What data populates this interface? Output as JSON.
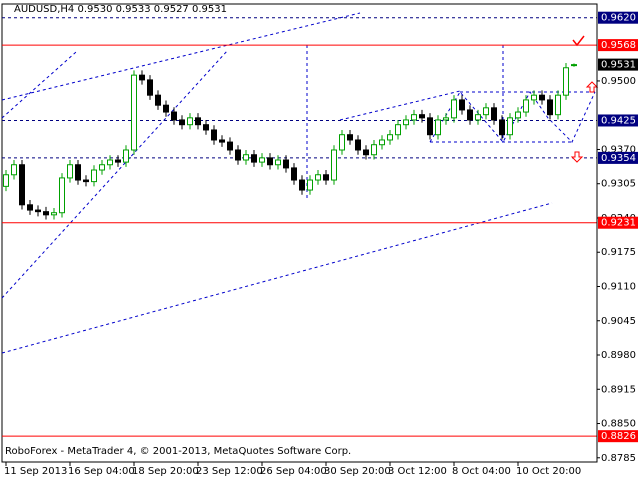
{
  "chart_data": {
    "type": "candlestick",
    "title": "AUDUSD,H4  0.9530 0.9533 0.9527 0.9531",
    "footer": "RoboForex - MetaTrader 4, © 2001-2013, MetaQuotes Software Corp.",
    "up_color": "#00a000",
    "down_color": "#000000",
    "categories": [
      "11 Sep 2013",
      null,
      null,
      null,
      null,
      null,
      null,
      null,
      "16 Sep 04:00",
      null,
      null,
      null,
      null,
      null,
      null,
      null,
      "18 Sep 20:00",
      null,
      null,
      null,
      null,
      null,
      null,
      null,
      "23 Sep 12:00",
      null,
      null,
      null,
      null,
      null,
      null,
      null,
      "26 Sep 04:00",
      null,
      null,
      null,
      null,
      null,
      null,
      null,
      "30 Sep 20:00",
      null,
      null,
      null,
      null,
      null,
      null,
      null,
      "3 Oct 12:00",
      null,
      null,
      null,
      null,
      null,
      null,
      null,
      "8 Oct 04:00",
      null,
      null,
      null,
      null,
      null,
      null,
      null,
      "10 Oct 20:00",
      null,
      null,
      null,
      null,
      null,
      null,
      null
    ],
    "open": [
      0.93,
      0.9322,
      0.9341,
      0.9265,
      0.9255,
      0.9252,
      0.9246,
      0.925,
      0.9316,
      0.9341,
      0.9312,
      0.9309,
      0.9331,
      0.9341,
      0.935,
      0.9346,
      0.9369,
      0.9511,
      0.9502,
      0.9473,
      0.9454,
      0.9441,
      0.9426,
      0.9417,
      0.943,
      0.9417,
      0.9407,
      0.9388,
      0.9384,
      0.9369,
      0.935,
      0.936,
      0.9346,
      0.9354,
      0.9341,
      0.935,
      0.9335,
      0.9312,
      0.9293,
      0.9312,
      0.9322,
      0.9312,
      0.9369,
      0.9398,
      0.9388,
      0.9369,
      0.936,
      0.9379,
      0.9388,
      0.9398,
      0.9417,
      0.9426,
      0.9436,
      0.943,
      0.9398,
      0.9426,
      0.943,
      0.9464,
      0.9445,
      0.9426,
      0.9436,
      0.9449,
      0.9426,
      0.9398,
      0.943,
      0.9441,
      0.9464,
      0.9473,
      0.9464,
      0.9436,
      0.9473,
      0.953
    ],
    "high": [
      0.9331,
      0.935,
      0.935,
      0.9274,
      0.9264,
      0.9261,
      0.9259,
      0.9325,
      0.935,
      0.935,
      0.9321,
      0.934,
      0.935,
      0.9359,
      0.9359,
      0.9378,
      0.952,
      0.952,
      0.9511,
      0.9482,
      0.9463,
      0.945,
      0.9435,
      0.9439,
      0.9439,
      0.9426,
      0.9416,
      0.9397,
      0.9393,
      0.9378,
      0.9369,
      0.9369,
      0.9363,
      0.9363,
      0.9359,
      0.9359,
      0.9344,
      0.9321,
      0.9321,
      0.9331,
      0.9331,
      0.9378,
      0.9407,
      0.9407,
      0.9397,
      0.9378,
      0.9388,
      0.9397,
      0.9407,
      0.9426,
      0.9435,
      0.9445,
      0.9445,
      0.9439,
      0.9435,
      0.9439,
      0.9473,
      0.9473,
      0.9454,
      0.9445,
      0.9458,
      0.9458,
      0.9435,
      0.9439,
      0.945,
      0.9473,
      0.9482,
      0.9482,
      0.9473,
      0.9482,
      0.9534,
      0.9533
    ],
    "low": [
      0.9291,
      0.9313,
      0.9256,
      0.9246,
      0.9243,
      0.9237,
      0.9237,
      0.9241,
      0.9307,
      0.9303,
      0.93,
      0.93,
      0.9322,
      0.9332,
      0.9337,
      0.9337,
      0.936,
      0.9493,
      0.9464,
      0.9445,
      0.9432,
      0.9417,
      0.9408,
      0.9408,
      0.9408,
      0.9398,
      0.9379,
      0.9375,
      0.936,
      0.9341,
      0.9341,
      0.9337,
      0.9337,
      0.9332,
      0.9332,
      0.9326,
      0.9303,
      0.9284,
      0.9284,
      0.9303,
      0.9303,
      0.9303,
      0.936,
      0.9379,
      0.936,
      0.9351,
      0.9351,
      0.937,
      0.9379,
      0.9389,
      0.9408,
      0.9417,
      0.9421,
      0.9389,
      0.9389,
      0.9417,
      0.9421,
      0.9436,
      0.9417,
      0.9417,
      0.9427,
      0.9417,
      0.9389,
      0.9389,
      0.9421,
      0.9432,
      0.9455,
      0.9455,
      0.9427,
      0.9427,
      0.9464,
      0.9527
    ],
    "close": [
      0.9322,
      0.9341,
      0.9265,
      0.9255,
      0.9252,
      0.9246,
      0.925,
      0.9316,
      0.9341,
      0.9312,
      0.9309,
      0.9331,
      0.9341,
      0.935,
      0.9346,
      0.9369,
      0.9511,
      0.9502,
      0.9473,
      0.9454,
      0.9441,
      0.9426,
      0.9417,
      0.943,
      0.9417,
      0.9407,
      0.9388,
      0.9384,
      0.9369,
      0.935,
      0.936,
      0.9346,
      0.9354,
      0.9341,
      0.935,
      0.9335,
      0.9312,
      0.9293,
      0.9312,
      0.9322,
      0.9312,
      0.9369,
      0.9398,
      0.9388,
      0.9369,
      0.936,
      0.9379,
      0.9388,
      0.9398,
      0.9417,
      0.9426,
      0.9436,
      0.943,
      0.9398,
      0.9426,
      0.943,
      0.9464,
      0.9445,
      0.9426,
      0.9436,
      0.9449,
      0.9426,
      0.9398,
      0.943,
      0.9441,
      0.9464,
      0.9473,
      0.9464,
      0.9436,
      0.9473,
      0.9525,
      0.9531
    ],
    "ylim": [
      0.8777,
      0.9646
    ],
    "yticks": [
      {
        "value": 0.95,
        "label": "0.9500"
      },
      {
        "value": 0.937,
        "label": "0.9370"
      },
      {
        "value": 0.9305,
        "label": "0.9305"
      },
      {
        "value": 0.924,
        "label": "0.9240"
      },
      {
        "value": 0.9175,
        "label": "0.9175"
      },
      {
        "value": 0.911,
        "label": "0.9110"
      },
      {
        "value": 0.9045,
        "label": "0.9045"
      },
      {
        "value": 0.898,
        "label": "0.8980"
      },
      {
        "value": 0.8915,
        "label": "0.8915"
      },
      {
        "value": 0.885,
        "label": "0.8850"
      },
      {
        "value": 0.8785,
        "label": "0.8785"
      }
    ],
    "levels": [
      {
        "value": 0.962,
        "label": "0.9620",
        "color": "#000080",
        "style": "dashed"
      },
      {
        "value": 0.9568,
        "label": "0.9568",
        "color": "#ff0000",
        "style": "solid"
      },
      {
        "value": 0.9425,
        "label": "0.9425",
        "color": "#000080",
        "style": "dashed"
      },
      {
        "value": 0.9354,
        "label": "0.9354",
        "color": "#000080",
        "style": "dashed"
      },
      {
        "value": 0.9231,
        "label": "0.9231",
        "color": "#ff0000",
        "style": "solid"
      },
      {
        "value": 0.8826,
        "label": "0.8826",
        "color": "#ff0000",
        "style": "solid"
      }
    ],
    "current_price": {
      "value": 0.9531,
      "label": "0.9531",
      "color": "#000000"
    }
  }
}
